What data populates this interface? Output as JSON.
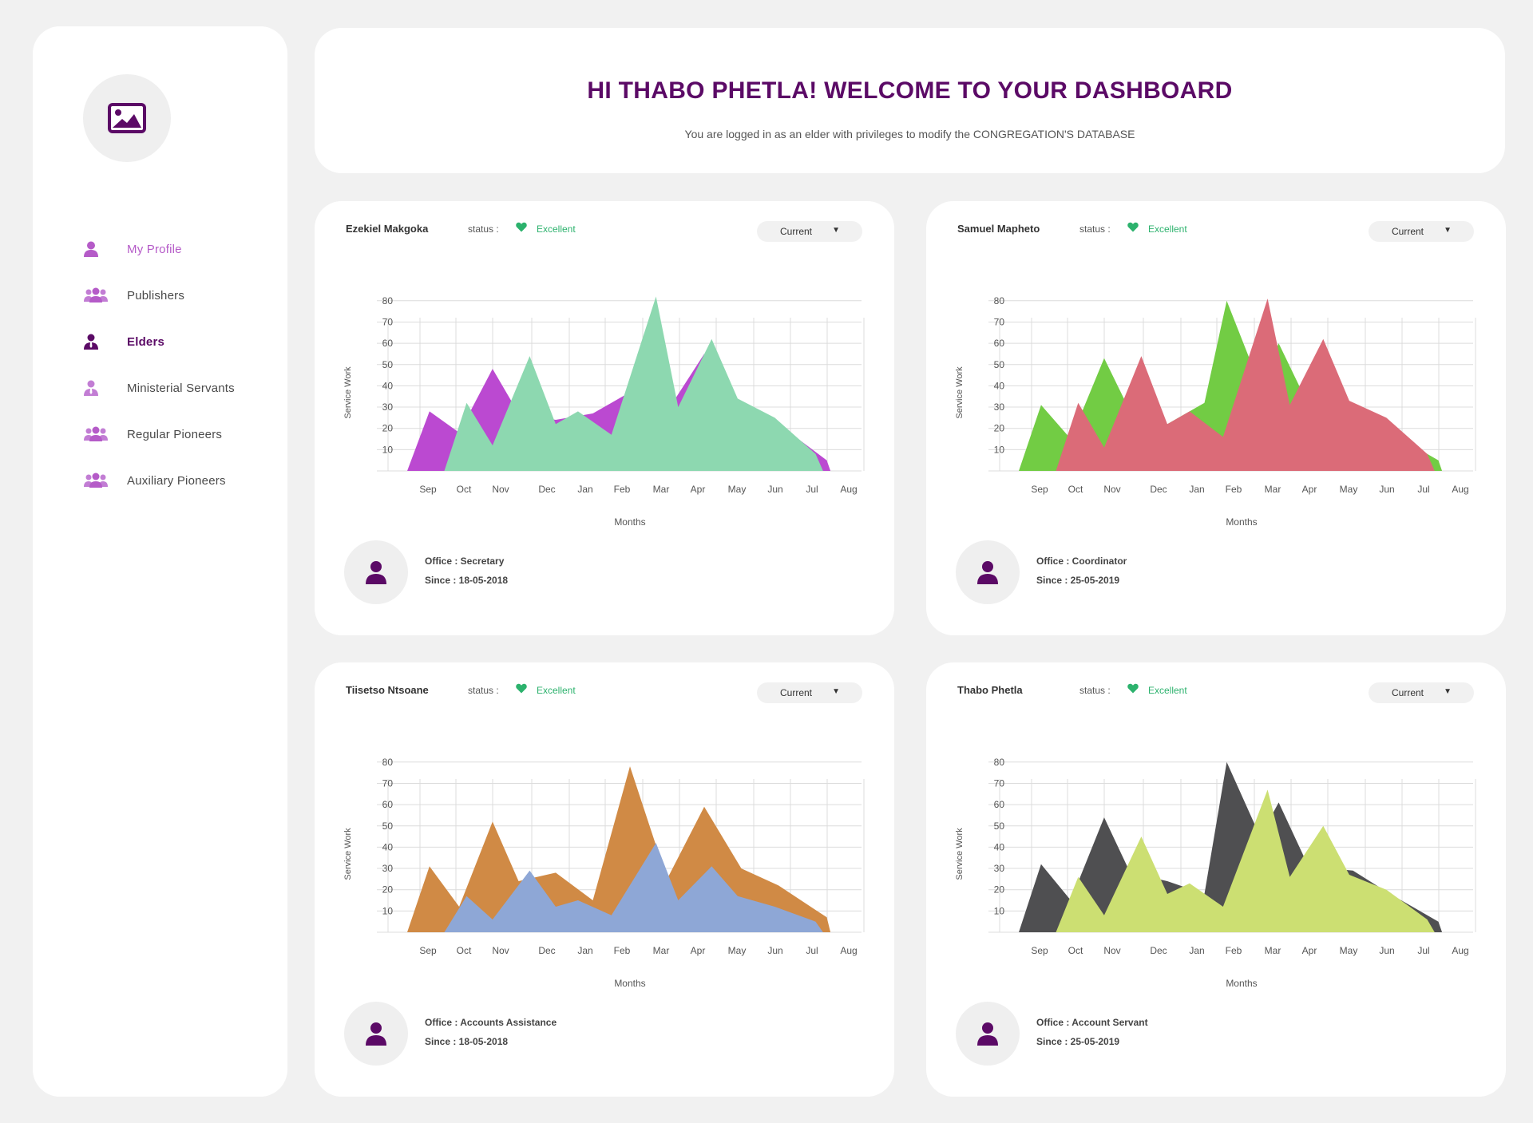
{
  "sidebar": {
    "items": [
      {
        "label": "My Profile",
        "icon": "user-icon",
        "state": "light"
      },
      {
        "label": "Publishers",
        "icon": "users-icon",
        "state": "normal"
      },
      {
        "label": "Elders",
        "icon": "user-tie-icon",
        "state": "active"
      },
      {
        "label": "Ministerial Servants",
        "icon": "user-tie-icon",
        "state": "normal"
      },
      {
        "label": "Regular Pioneers",
        "icon": "users-icon",
        "state": "normal"
      },
      {
        "label": "Auxiliary Pioneers",
        "icon": "users-icon",
        "state": "normal"
      }
    ]
  },
  "header": {
    "title": "HI THABO PHETLA! WELCOME TO YOUR DASHBOARD",
    "subtitle": "You are logged in as an elder with privileges to modify the CONGREGATION'S DATABASE"
  },
  "colors": {
    "brand": "#5b0a66",
    "accent_light": "#b55bc8",
    "status_green": "#2cb26d"
  },
  "cards": [
    {
      "name": "Ezekiel Makgoka",
      "status_label": "status :",
      "status": "Excellent",
      "dropdown": "Current",
      "office": "Office : Secretary",
      "since": "Since  : 18-05-2018",
      "chart_data": {
        "type": "area",
        "ylabel": "Service Work",
        "xlabel": "Months",
        "yticks": [
          10,
          20,
          30,
          40,
          50,
          60,
          70,
          80
        ],
        "ylim": [
          0,
          80
        ],
        "categories": [
          "Sep",
          "Oct",
          "Nov",
          "Dec",
          "Jan",
          "Feb",
          "Mar",
          "Apr",
          "May",
          "Jun",
          "Jul",
          "Aug"
        ],
        "series": [
          {
            "color": "#bb49d1",
            "points": [
              [
                0,
                0
              ],
              [
                0.6,
                28
              ],
              [
                1.4,
                18
              ],
              [
                2.3,
                48
              ],
              [
                3,
                27
              ],
              [
                4,
                24
              ],
              [
                5,
                27
              ],
              [
                6,
                37
              ],
              [
                7,
                28
              ],
              [
                8,
                55
              ],
              [
                9,
                31
              ],
              [
                10,
                22
              ],
              [
                11.3,
                5
              ],
              [
                11.4,
                0
              ]
            ]
          },
          {
            "color": "#8dd8b0",
            "points": [
              [
                1,
                0
              ],
              [
                1.6,
                32
              ],
              [
                2.3,
                12
              ],
              [
                3.3,
                54
              ],
              [
                4,
                22
              ],
              [
                4.6,
                28
              ],
              [
                5.5,
                17
              ],
              [
                6.7,
                82
              ],
              [
                7.3,
                30
              ],
              [
                8.2,
                62
              ],
              [
                8.9,
                34
              ],
              [
                9.9,
                25
              ],
              [
                11,
                8
              ],
              [
                11.2,
                0
              ]
            ]
          }
        ]
      }
    },
    {
      "name": "Samuel Mapheto",
      "status_label": "status :",
      "status": "Excellent",
      "dropdown": "Current",
      "office": "Office : Coordinator",
      "since": "Since  : 25-05-2019",
      "chart_data": {
        "type": "area",
        "ylabel": "Service Work",
        "xlabel": "Months",
        "yticks": [
          10,
          20,
          30,
          40,
          50,
          60,
          70,
          80
        ],
        "ylim": [
          0,
          80
        ],
        "categories": [
          "Sep",
          "Oct",
          "Nov",
          "Dec",
          "Jan",
          "Feb",
          "Mar",
          "Apr",
          "May",
          "Jun",
          "Jul",
          "Aug"
        ],
        "series": [
          {
            "color": "#72cc44",
            "points": [
              [
                0,
                0
              ],
              [
                0.6,
                31
              ],
              [
                1.4,
                15
              ],
              [
                2.3,
                53
              ],
              [
                3,
                28
              ],
              [
                4,
                22
              ],
              [
                5,
                32
              ],
              [
                5.6,
                80
              ],
              [
                6.5,
                40
              ],
              [
                7,
                60
              ],
              [
                7.8,
                31
              ],
              [
                9,
                29
              ],
              [
                10,
                18
              ],
              [
                11.3,
                5
              ],
              [
                11.4,
                0
              ]
            ]
          },
          {
            "color": "#db6b78",
            "points": [
              [
                1,
                0
              ],
              [
                1.6,
                32
              ],
              [
                2.3,
                11
              ],
              [
                3.3,
                54
              ],
              [
                4,
                22
              ],
              [
                4.6,
                28
              ],
              [
                5.5,
                16
              ],
              [
                6.7,
                81
              ],
              [
                7.3,
                31
              ],
              [
                8.2,
                62
              ],
              [
                8.9,
                33
              ],
              [
                9.9,
                25
              ],
              [
                11,
                8
              ],
              [
                11.2,
                0
              ]
            ]
          }
        ]
      }
    },
    {
      "name": "Tiisetso Ntsoane",
      "status_label": "status :",
      "status": "Excellent",
      "dropdown": "Current",
      "office": "Office : Accounts Assistance",
      "since": "Since  : 18-05-2018",
      "chart_data": {
        "type": "area",
        "ylabel": "Service Work",
        "xlabel": "Months",
        "yticks": [
          10,
          20,
          30,
          40,
          50,
          60,
          70,
          80
        ],
        "ylim": [
          0,
          80
        ],
        "categories": [
          "Sep",
          "Oct",
          "Nov",
          "Dec",
          "Jan",
          "Feb",
          "Mar",
          "Apr",
          "May",
          "Jun",
          "Jul",
          "Aug"
        ],
        "series": [
          {
            "color": "#d08a45",
            "points": [
              [
                0,
                0
              ],
              [
                0.6,
                31
              ],
              [
                1.4,
                12
              ],
              [
                2.3,
                52
              ],
              [
                3,
                24
              ],
              [
                4,
                28
              ],
              [
                5,
                15
              ],
              [
                6,
                78
              ],
              [
                7,
                25
              ],
              [
                8,
                59
              ],
              [
                9,
                30
              ],
              [
                10,
                22
              ],
              [
                11.3,
                7
              ],
              [
                11.4,
                0
              ]
            ]
          },
          {
            "color": "#8ea7d6",
            "points": [
              [
                1,
                0
              ],
              [
                1.6,
                17
              ],
              [
                2.3,
                6
              ],
              [
                3.3,
                29
              ],
              [
                4,
                12
              ],
              [
                4.6,
                15
              ],
              [
                5.5,
                8
              ],
              [
                6.7,
                42
              ],
              [
                7.3,
                15
              ],
              [
                8.2,
                31
              ],
              [
                8.9,
                17
              ],
              [
                9.9,
                12
              ],
              [
                11,
                5
              ],
              [
                11.2,
                0
              ]
            ]
          }
        ]
      }
    },
    {
      "name": "Thabo Phetla",
      "status_label": "status :",
      "status": "Excellent",
      "dropdown": "Current",
      "office": "Office : Account Servant",
      "since": "Since  : 25-05-2019",
      "chart_data": {
        "type": "area",
        "ylabel": "Service Work",
        "xlabel": "Months",
        "yticks": [
          10,
          20,
          30,
          40,
          50,
          60,
          70,
          80
        ],
        "ylim": [
          0,
          80
        ],
        "categories": [
          "Sep",
          "Oct",
          "Nov",
          "Dec",
          "Jan",
          "Feb",
          "Mar",
          "Apr",
          "May",
          "Jun",
          "Jul",
          "Aug"
        ],
        "series": [
          {
            "color": "#4f4f51",
            "points": [
              [
                0,
                0
              ],
              [
                0.6,
                32
              ],
              [
                1.4,
                15
              ],
              [
                2.3,
                54
              ],
              [
                3,
                28
              ],
              [
                4,
                24
              ],
              [
                5,
                18
              ],
              [
                5.6,
                80
              ],
              [
                6.5,
                45
              ],
              [
                7,
                61
              ],
              [
                7.8,
                31
              ],
              [
                9,
                29
              ],
              [
                10,
                18
              ],
              [
                11.3,
                5
              ],
              [
                11.4,
                0
              ]
            ]
          },
          {
            "color": "#ccdf72",
            "points": [
              [
                1,
                0
              ],
              [
                1.6,
                26
              ],
              [
                2.3,
                8
              ],
              [
                3.3,
                45
              ],
              [
                4,
                18
              ],
              [
                4.6,
                23
              ],
              [
                5.5,
                12
              ],
              [
                6.7,
                67
              ],
              [
                7.3,
                26
              ],
              [
                8.2,
                50
              ],
              [
                8.9,
                27
              ],
              [
                9.9,
                20
              ],
              [
                11,
                6
              ],
              [
                11.2,
                0
              ]
            ]
          }
        ]
      }
    }
  ]
}
